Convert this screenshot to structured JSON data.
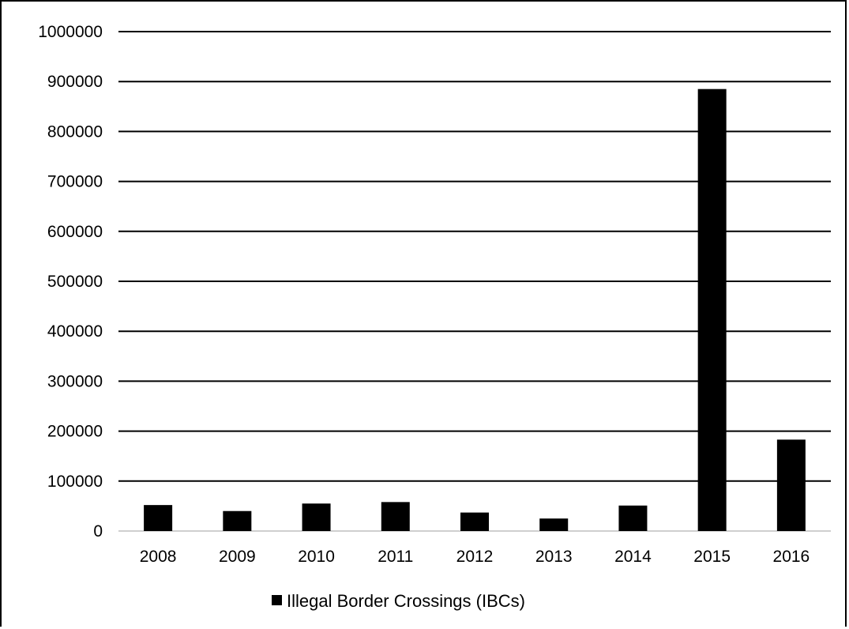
{
  "chart_data": {
    "type": "bar",
    "categories": [
      "2008",
      "2009",
      "2010",
      "2011",
      "2012",
      "2013",
      "2014",
      "2015",
      "2016"
    ],
    "series": [
      {
        "name": "Illegal Border Crossings (IBCs)",
        "values": [
          52000,
          40000,
          55000,
          58000,
          37000,
          25000,
          51000,
          885000,
          183000
        ]
      }
    ],
    "ylim": [
      0,
      1000000
    ],
    "yticks": [
      "0",
      "100000",
      "200000",
      "300000",
      "400000",
      "500000",
      "600000",
      "700000",
      "800000",
      "900000",
      "1000000"
    ],
    "grid": true,
    "legend": "bottom",
    "colors": {
      "bar": "#000000",
      "grid": "#000000",
      "axis": "#bfbfbf"
    }
  }
}
